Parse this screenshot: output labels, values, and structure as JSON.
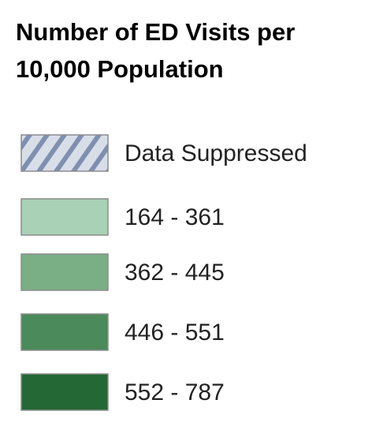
{
  "legend": {
    "title": [
      "Number of ED Visits per",
      "10,000 Population"
    ],
    "items": [
      {
        "label": "Data Suppressed",
        "color": "#d8dee8",
        "hatch": "#7f8fb0"
      },
      {
        "label": "164 - 361",
        "color": "#a9d1b5"
      },
      {
        "label": "362 - 445",
        "color": "#7aae85"
      },
      {
        "label": "446 - 551",
        "color": "#4b8a5a"
      },
      {
        "label": "552 - 787",
        "color": "#246835"
      }
    ]
  }
}
